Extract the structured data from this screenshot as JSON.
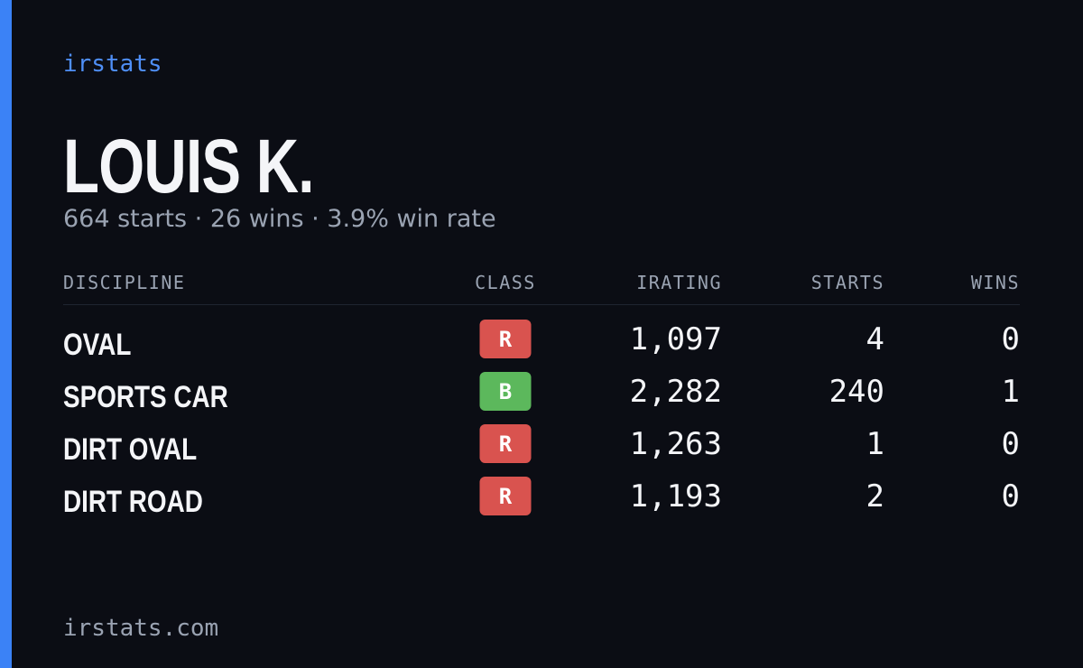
{
  "brand": "irstats",
  "name": "LOUIS K.",
  "summary": "664 starts · 26 wins · 3.9% win rate",
  "table": {
    "headers": [
      "DISCIPLINE",
      "CLASS",
      "IRATING",
      "STARTS",
      "WINS"
    ],
    "rows": [
      [
        "OVAL",
        "R",
        "1,097",
        4,
        0
      ],
      [
        "SPORTS CAR",
        "B",
        "2,282",
        240,
        1
      ],
      [
        "DIRT OVAL",
        "R",
        "1,263",
        1,
        0
      ],
      [
        "DIRT ROAD",
        "R",
        "1,193",
        2,
        0
      ]
    ],
    "class_colors": {
      "R": "#d9534f",
      "B": "#5cb85c"
    }
  },
  "footer": "irstats.com"
}
